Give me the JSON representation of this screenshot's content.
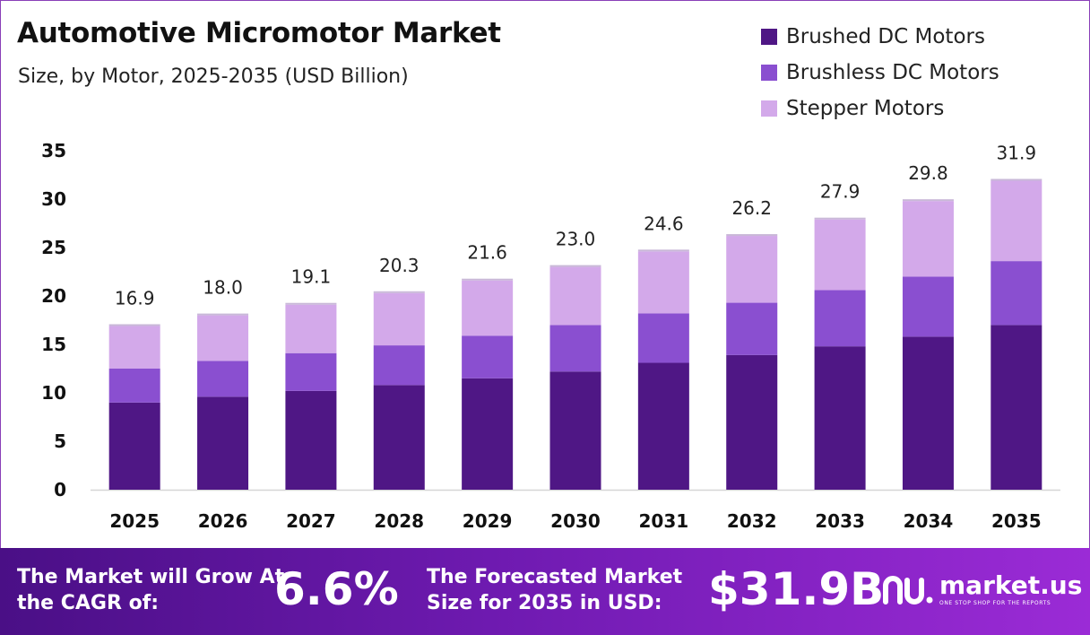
{
  "title": "Automotive Micromotor Market",
  "subtitle": "Size, by Motor, 2025-2035 (USD Billion)",
  "colors": {
    "brushed": "#4f1785",
    "brushless": "#8a4fd0",
    "stepper": "#d3a9ea",
    "footer_start": "#4a0f86",
    "footer_end": "#9b2bd6"
  },
  "chart_data": {
    "type": "bar",
    "stacked": true,
    "categories": [
      "2025",
      "2026",
      "2027",
      "2028",
      "2029",
      "2030",
      "2031",
      "2032",
      "2033",
      "2034",
      "2035"
    ],
    "series": [
      {
        "name": "Brushed DC Motors",
        "values": [
          9.0,
          9.6,
          10.2,
          10.8,
          11.5,
          12.2,
          13.1,
          13.9,
          14.8,
          15.8,
          17.0
        ]
      },
      {
        "name": "Brushless DC Motors",
        "values": [
          3.5,
          3.7,
          3.9,
          4.1,
          4.4,
          4.8,
          5.1,
          5.4,
          5.8,
          6.2,
          6.6
        ]
      },
      {
        "name": "Stepper Motors",
        "values": [
          4.4,
          4.7,
          5.0,
          5.4,
          5.7,
          6.0,
          6.4,
          6.9,
          7.3,
          7.8,
          8.3
        ]
      }
    ],
    "totals": [
      "16.9",
      "18.0",
      "19.1",
      "20.3",
      "21.6",
      "23.0",
      "24.6",
      "26.2",
      "27.9",
      "29.8",
      "31.9"
    ],
    "y_ticks": [
      "0",
      "5",
      "10",
      "15",
      "20",
      "25",
      "30",
      "35"
    ],
    "ylim": [
      0,
      35
    ],
    "grid": false,
    "legend_position": "top-right"
  },
  "legend": {
    "items": [
      {
        "label": "Brushed DC Motors"
      },
      {
        "label": "Brushless DC Motors"
      },
      {
        "label": "Stepper Motors"
      }
    ]
  },
  "footer": {
    "cagr_text": "The Market will Grow At the CAGR of:",
    "cagr_value": "6.6%",
    "forecast_text": "The Forecasted Market Size for 2035 in USD:",
    "forecast_value": "$31.9B",
    "logo_name": "market.us",
    "logo_tagline": "ONE STOP SHOP FOR THE REPORTS"
  }
}
